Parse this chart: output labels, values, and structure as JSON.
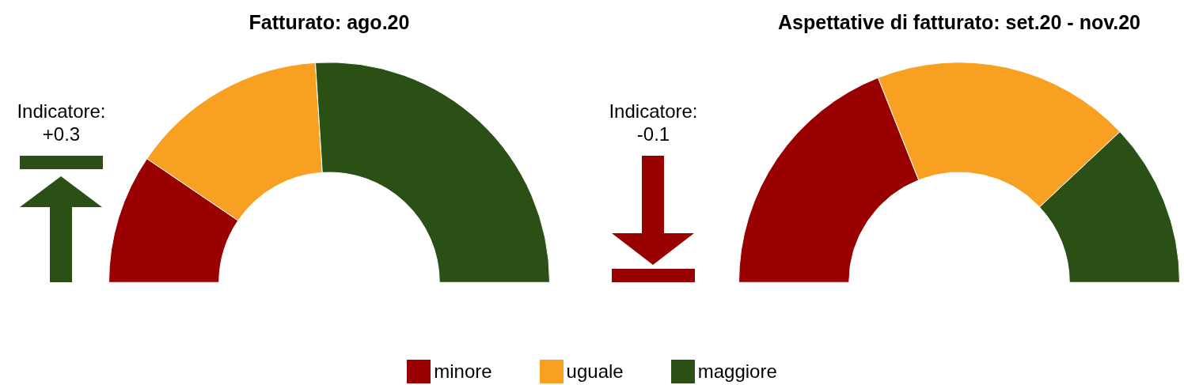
{
  "chart_data": [
    {
      "type": "donut",
      "title": "Fatturato: ago.20",
      "categories": [
        "minore",
        "uguale",
        "maggiore"
      ],
      "values": [
        19,
        29,
        52
      ],
      "colors": [
        "#990000",
        "#f7a021",
        "#2a5016"
      ],
      "annotations": [
        "Indicatore:",
        "+0.3"
      ],
      "legend": "bottom"
    },
    {
      "type": "donut",
      "title": "Aspettative di fatturato: set.20 - nov.20",
      "categories": [
        null,
        null,
        null
      ],
      "values": [
        38,
        38,
        24
      ],
      "colors": [
        "#990000",
        "#f7a021",
        "#2a5016"
      ],
      "annotations": [
        "Indicatore:",
        "-0.1"
      ]
    }
  ]
}
